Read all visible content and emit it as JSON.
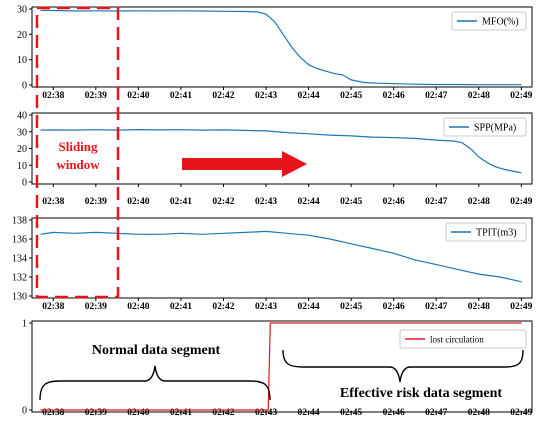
{
  "ticks_x": [
    "02:38",
    "02:39",
    "02:40",
    "02:41",
    "02:42",
    "02:43",
    "02:44",
    "02:45",
    "02:46",
    "02:47",
    "02:48",
    "02:49"
  ],
  "overlay": {
    "sliding_window_line1": "Sliding",
    "sliding_window_line2": "window",
    "normal_label": "Normal data segment",
    "risk_label": "Effective risk data segment"
  },
  "colors": {
    "series_blue": "#1f77b4",
    "series_red": "#e41a1c",
    "overlay_red": "#e8141b",
    "frame": "#000000"
  },
  "chart_data": [
    {
      "type": "line",
      "series": [
        {
          "name": "MFO(%)",
          "x_minutes": [
            37.7,
            38.0,
            38.5,
            39.0,
            39.5,
            40.0,
            40.5,
            41.0,
            41.5,
            42.0,
            42.5,
            42.8,
            43.0,
            43.2,
            43.4,
            43.6,
            43.8,
            44.0,
            44.2,
            44.4,
            44.6,
            44.8,
            45.0,
            45.3,
            45.6,
            46.0,
            46.5,
            47.0,
            47.5,
            48.0,
            48.5,
            49.0
          ],
          "values": [
            29.5,
            29.4,
            29.2,
            29.3,
            29.2,
            29.3,
            29.2,
            29.3,
            29.2,
            29.1,
            29.0,
            28.8,
            28.0,
            25.0,
            20.0,
            15.0,
            11.0,
            8.0,
            6.5,
            5.5,
            4.5,
            4.0,
            2.0,
            1.0,
            0.7,
            0.5,
            0.3,
            0.2,
            0.2,
            0.1,
            0.1,
            0.1
          ]
        }
      ],
      "xlabel": "",
      "ylabel": "",
      "xlim": [
        "02:37:30",
        "02:49:15"
      ],
      "ylim": [
        0,
        30
      ],
      "yticks": [
        0,
        10,
        20,
        30
      ],
      "legend_position": "top-right",
      "grid": false
    },
    {
      "type": "line",
      "series": [
        {
          "name": "SPP(MPa)",
          "x_minutes": [
            37.7,
            38.0,
            38.5,
            39.0,
            39.5,
            40.0,
            40.5,
            41.0,
            41.5,
            42.0,
            42.5,
            43.0,
            43.5,
            44.0,
            44.5,
            45.0,
            45.5,
            46.0,
            46.5,
            47.0,
            47.4,
            47.6,
            47.8,
            48.0,
            48.2,
            48.4,
            48.6,
            48.8,
            49.0
          ],
          "values": [
            31.0,
            31.1,
            31.0,
            31.2,
            31.0,
            31.3,
            31.1,
            31.2,
            31.0,
            31.1,
            30.8,
            30.5,
            29.5,
            28.8,
            28.0,
            27.5,
            26.8,
            26.5,
            26.0,
            25.0,
            24.5,
            23.5,
            20.0,
            15.0,
            11.5,
            9.0,
            7.5,
            6.5,
            5.5
          ]
        }
      ],
      "xlabel": "",
      "ylabel": "",
      "xlim": [
        "02:37:30",
        "02:49:15"
      ],
      "ylim": [
        0,
        40
      ],
      "yticks": [
        0,
        10,
        20,
        30,
        40
      ],
      "legend_position": "top-right",
      "grid": false
    },
    {
      "type": "line",
      "series": [
        {
          "name": "TPIT(m3)",
          "x_minutes": [
            37.7,
            38.0,
            38.5,
            39.0,
            39.5,
            40.0,
            40.5,
            41.0,
            41.5,
            42.0,
            42.5,
            43.0,
            43.5,
            44.0,
            44.5,
            45.0,
            45.5,
            46.0,
            46.5,
            47.0,
            47.5,
            48.0,
            48.5,
            49.0
          ],
          "values": [
            136.5,
            136.7,
            136.6,
            136.7,
            136.6,
            136.5,
            136.5,
            136.6,
            136.5,
            136.6,
            136.7,
            136.8,
            136.6,
            136.4,
            136.0,
            135.5,
            135.0,
            134.5,
            133.8,
            133.3,
            132.8,
            132.3,
            132.0,
            131.5
          ]
        }
      ],
      "xlabel": "",
      "ylabel": "",
      "xlim": [
        "02:37:30",
        "02:49:15"
      ],
      "ylim": [
        130,
        138
      ],
      "yticks": [
        130,
        132,
        134,
        136,
        138
      ],
      "legend_position": "top-right",
      "grid": false
    },
    {
      "type": "line",
      "series": [
        {
          "name": "lost circulation",
          "x_minutes": [
            37.7,
            43.05,
            43.1,
            49.0
          ],
          "values": [
            0,
            0,
            1,
            1
          ]
        }
      ],
      "xlabel": "",
      "ylabel": "",
      "xlim": [
        "02:37:30",
        "02:49:15"
      ],
      "ylim": [
        0,
        1
      ],
      "yticks": [
        0,
        1
      ],
      "legend_position": "top-right",
      "grid": false
    }
  ]
}
